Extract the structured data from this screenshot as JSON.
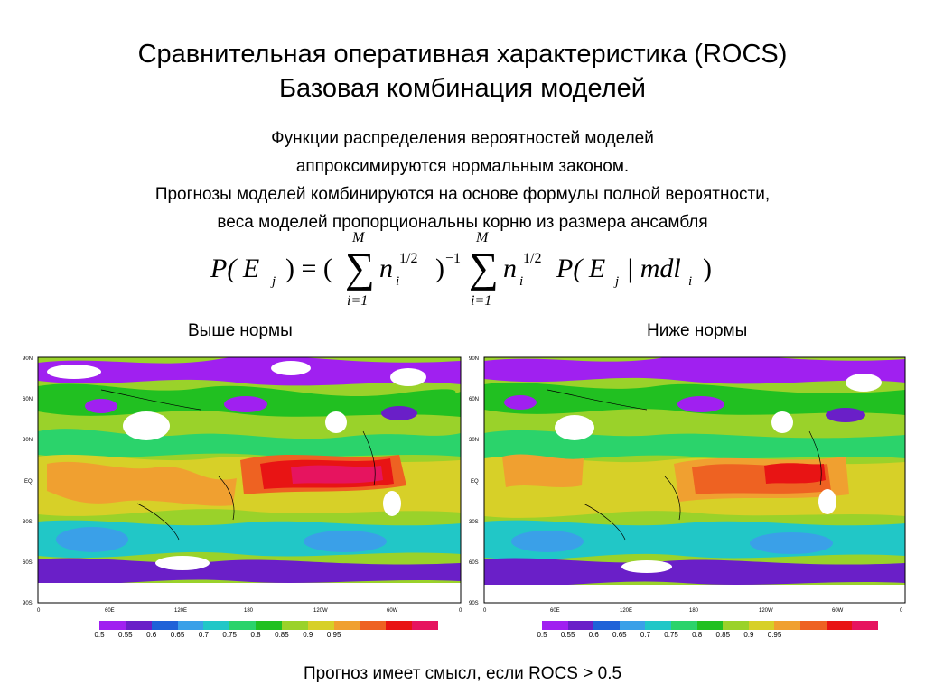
{
  "slide": {
    "title_line1": "Сравнительная оперативная характеристика (ROCS)",
    "title_line2": "Базовая комбинация моделей",
    "text_lines": [
      "Функции распределения вероятностей моделей",
      "аппроксимируются нормальным законом.",
      "Прогнозы моделей комбинируются на основе формулы полной вероятности,",
      "веса моделей пропорциональны корню из размера ансамбля"
    ],
    "footer": "Прогноз имеет смысл, если  ROCS > 0.5"
  },
  "formula": {
    "lhs": "P( E",
    "lhs_sub": "j",
    "lhs_close": ") = (",
    "sum_upper": "M",
    "sum_lower": "i=1",
    "n": "n",
    "n_sub": "i",
    "power": "1/2",
    "close_paren": ")",
    "inverse_power": "−1",
    "p_right": "P( E",
    "p_right_sub": "j",
    "given": "| mdl",
    "mdl_sub": "i",
    "end_paren": ")"
  },
  "maps": {
    "left": {
      "caption": "Выше нормы",
      "lat_labels": [
        "90N",
        "60N",
        "30N",
        "EQ",
        "30S",
        "60S",
        "90S"
      ],
      "lon_labels": [
        "0",
        "60E",
        "120E",
        "180",
        "120W",
        "60W",
        "0"
      ]
    },
    "right": {
      "caption": "Ниже нормы",
      "lat_labels": [
        "90N",
        "60N",
        "30N",
        "EQ",
        "30S",
        "60S",
        "90S"
      ],
      "lon_labels": [
        "0",
        "60E",
        "120E",
        "180",
        "120W",
        "60W",
        "0"
      ]
    }
  },
  "colorbar": {
    "colors": [
      "#a020f0",
      "#6a1fc8",
      "#1f62d8",
      "#3aa0e8",
      "#21c7c7",
      "#2bd36b",
      "#21c021",
      "#9ad22a",
      "#d7d028",
      "#f0a030",
      "#ee6222",
      "#e81414",
      "#e6145f"
    ],
    "labels": [
      "0.5",
      "0.55",
      "0.6",
      "0.65",
      "0.7",
      "0.75",
      "0.8",
      "0.85",
      "0.9",
      "0.95"
    ]
  }
}
